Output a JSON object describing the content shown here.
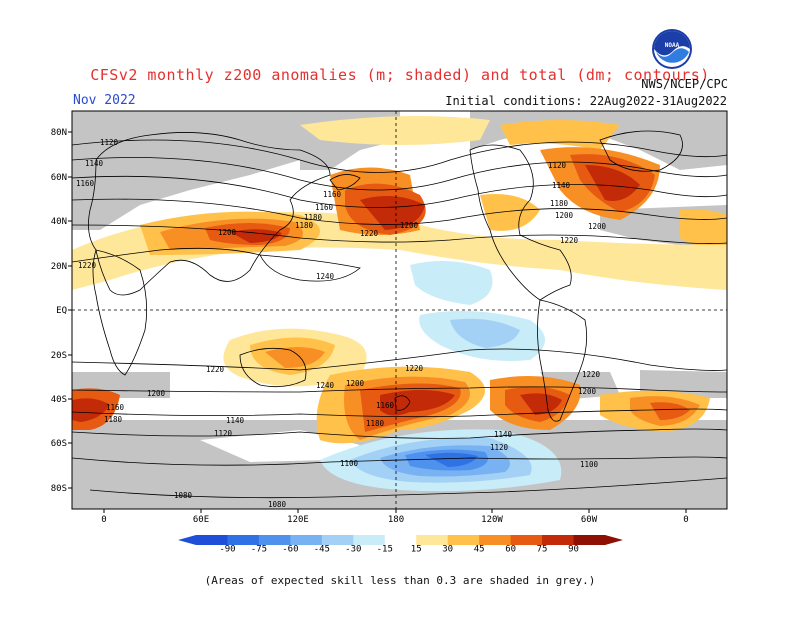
{
  "header": {
    "title": "CFSv2 monthly z200 anomalies (m; shaded) and total (dm; contours)",
    "month": "Nov 2022",
    "agency": "NWS/NCEP/CPC",
    "initial_conditions": "Initial conditions: 22Aug2022-31Aug2022",
    "logo_text": "NOAA"
  },
  "axes": {
    "lat_labels": [
      "80N",
      "60N",
      "40N",
      "20N",
      "EQ",
      "20S",
      "40S",
      "60S",
      "80S"
    ],
    "lon_labels": [
      "0",
      "60E",
      "120E",
      "180",
      "120W",
      "60W",
      "0"
    ]
  },
  "contour_labels": [
    "1120",
    "1140",
    "1160",
    "1160",
    "1180",
    "1200",
    "1220",
    "1240",
    "1200",
    "1220",
    "1200",
    "1180",
    "1140",
    "1120",
    "1160",
    "1180",
    "1200",
    "1220",
    "1200",
    "1220",
    "1240",
    "1220",
    "1200",
    "1160",
    "1180",
    "1140",
    "1120",
    "1100",
    "1080",
    "1080",
    "1160",
    "1180",
    "1200",
    "1220",
    "1140",
    "1120",
    "1100"
  ],
  "colorbar": {
    "ticks": [
      "-90",
      "-75",
      "-60",
      "-45",
      "-30",
      "-15",
      "15",
      "30",
      "45",
      "60",
      "75",
      "90"
    ],
    "colors": [
      "#1f4fd8",
      "#2f72e6",
      "#4f92ee",
      "#78b2f3",
      "#a3d1f6",
      "#c8ecf8",
      "#ffffff",
      "#ffe79a",
      "#ffc14a",
      "#f88f24",
      "#e65a12",
      "#c22a08",
      "#8e0f04"
    ]
  },
  "footnote": "(Areas of expected skill less than 0.3 are shaded in grey.)",
  "colors": {
    "title": "#e53030",
    "month": "#2a4bd0",
    "grey_mask": "#c4c4c4"
  }
}
